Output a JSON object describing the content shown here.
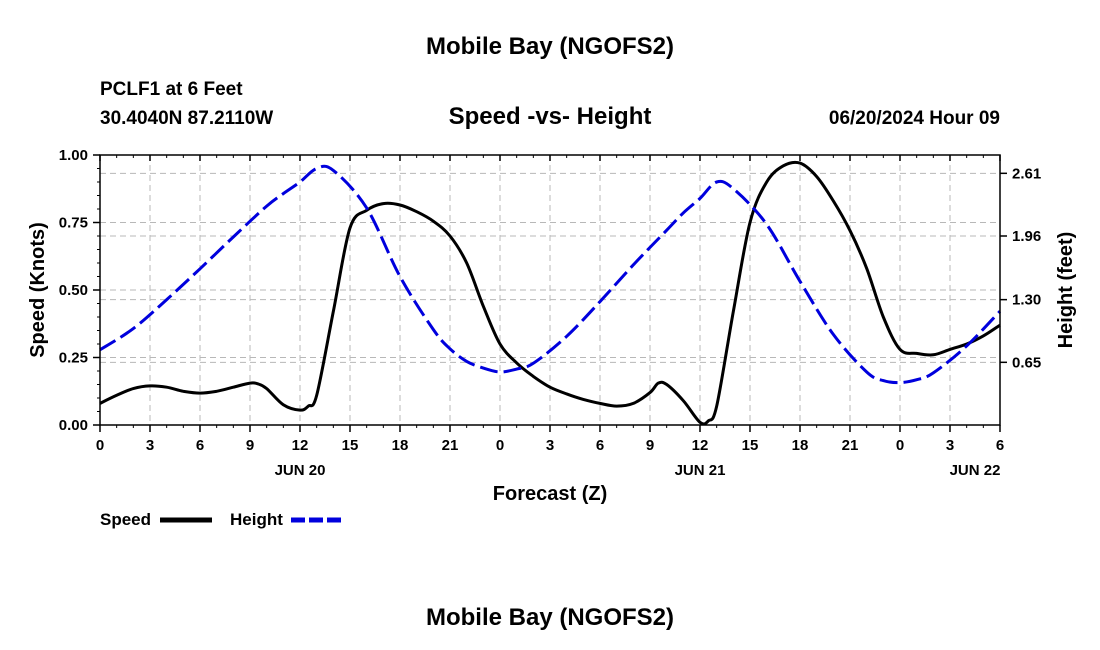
{
  "header": {
    "title": "Mobile Bay (NGOFS2)",
    "station": "PCLF1 at 6 Feet",
    "coords": "30.4040N  87.2110W",
    "subtitle": "Speed -vs- Height",
    "datetime": "06/20/2024 Hour 09",
    "footer_title": "Mobile Bay (NGOFS2)"
  },
  "chart_data": {
    "type": "line",
    "xlabel": "Forecast (Z)",
    "ylabel_left": "Speed (Knots)",
    "ylabel_right": "Height (feet)",
    "x_range_hours": [
      0,
      54
    ],
    "x_ticks": [
      {
        "h": 0,
        "label": "0"
      },
      {
        "h": 3,
        "label": "3"
      },
      {
        "h": 6,
        "label": "6"
      },
      {
        "h": 9,
        "label": "9"
      },
      {
        "h": 12,
        "label": "12"
      },
      {
        "h": 15,
        "label": "15"
      },
      {
        "h": 18,
        "label": "18"
      },
      {
        "h": 21,
        "label": "21"
      },
      {
        "h": 24,
        "label": "0"
      },
      {
        "h": 27,
        "label": "3"
      },
      {
        "h": 30,
        "label": "6"
      },
      {
        "h": 33,
        "label": "9"
      },
      {
        "h": 36,
        "label": "12"
      },
      {
        "h": 39,
        "label": "15"
      },
      {
        "h": 42,
        "label": "18"
      },
      {
        "h": 45,
        "label": "21"
      },
      {
        "h": 48,
        "label": "0"
      },
      {
        "h": 51,
        "label": "3"
      },
      {
        "h": 54,
        "label": "6"
      }
    ],
    "date_labels": [
      {
        "h": 12,
        "label": "JUN 20"
      },
      {
        "h": 36,
        "label": "JUN 21"
      },
      {
        "h": 52.5,
        "label": "JUN 22"
      }
    ],
    "ylim_left": [
      0,
      1.0
    ],
    "yticks_left": [
      0,
      0.25,
      0.5,
      0.75,
      1.0
    ],
    "ytick_labels_left": [
      "0.00",
      "0.25",
      "0.50",
      "0.75",
      "1.00"
    ],
    "ylim_right": [
      0.0,
      2.8
    ],
    "yticks_right": [
      0.65,
      1.3,
      1.96,
      2.61
    ],
    "ytick_labels_right": [
      "0.65",
      "1.30",
      "1.96",
      "2.61"
    ],
    "grid": true,
    "series": [
      {
        "name": "Speed",
        "color": "#000000",
        "dash": "solid",
        "axis": "left",
        "x": [
          0,
          1,
          2,
          3,
          4,
          5,
          6,
          7,
          8,
          9,
          9.5,
          10,
          11,
          12,
          12.5,
          13,
          14,
          15,
          16,
          17,
          18,
          19,
          20,
          21,
          22,
          23,
          24,
          25,
          26,
          27,
          28,
          29,
          30,
          31,
          32,
          33,
          33.5,
          34,
          35,
          36,
          36.5,
          37,
          38,
          39,
          40,
          41,
          42,
          43,
          44,
          45,
          46,
          47,
          48,
          49,
          50,
          51,
          52,
          53,
          54
        ],
        "y": [
          0.08,
          0.11,
          0.135,
          0.145,
          0.14,
          0.125,
          0.118,
          0.125,
          0.14,
          0.155,
          0.152,
          0.135,
          0.075,
          0.055,
          0.07,
          0.11,
          0.42,
          0.73,
          0.795,
          0.82,
          0.815,
          0.79,
          0.755,
          0.7,
          0.6,
          0.44,
          0.3,
          0.23,
          0.18,
          0.14,
          0.115,
          0.095,
          0.08,
          0.07,
          0.08,
          0.12,
          0.155,
          0.15,
          0.09,
          0.01,
          0.015,
          0.07,
          0.42,
          0.75,
          0.9,
          0.96,
          0.97,
          0.92,
          0.83,
          0.72,
          0.58,
          0.4,
          0.28,
          0.265,
          0.26,
          0.28,
          0.3,
          0.33,
          0.37
        ]
      },
      {
        "name": "Height",
        "color": "#0000dd",
        "dash": "dashed",
        "axis": "right",
        "x": [
          0,
          2,
          4,
          6,
          8,
          10,
          11,
          12,
          13,
          14,
          16,
          18,
          20,
          21,
          22,
          23,
          24,
          25,
          26,
          28,
          30,
          32,
          34,
          35,
          36,
          37,
          38,
          40,
          42,
          44,
          46,
          47,
          48,
          49,
          50,
          52,
          54
        ],
        "y": [
          0.78,
          1.0,
          1.3,
          1.62,
          1.95,
          2.27,
          2.4,
          2.52,
          2.66,
          2.64,
          2.25,
          1.54,
          0.99,
          0.79,
          0.66,
          0.59,
          0.55,
          0.58,
          0.64,
          0.92,
          1.28,
          1.66,
          2.02,
          2.2,
          2.35,
          2.52,
          2.45,
          2.08,
          1.49,
          0.94,
          0.55,
          0.46,
          0.44,
          0.47,
          0.54,
          0.82,
          1.18
        ]
      }
    ],
    "legend": [
      {
        "label": "Speed",
        "color": "#000000",
        "dash": "solid"
      },
      {
        "label": "Height",
        "color": "#0000dd",
        "dash": "dashed"
      }
    ],
    "legend_position": "bottom-left"
  }
}
